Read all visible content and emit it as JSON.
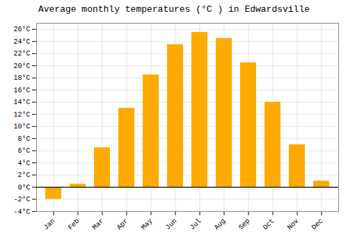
{
  "chart_data": {
    "type": "bar",
    "title": "Average monthly temperatures (°C ) in Edwardsville",
    "categories": [
      "Jan",
      "Feb",
      "Mar",
      "Apr",
      "May",
      "Jun",
      "Jul",
      "Aug",
      "Sep",
      "Oct",
      "Nov",
      "Dec"
    ],
    "values": [
      -2.0,
      0.5,
      6.5,
      13.0,
      18.5,
      23.5,
      25.5,
      24.5,
      20.5,
      14.0,
      7.0,
      1.0
    ],
    "color": "#FFAA00",
    "ylim": [
      -4,
      27
    ],
    "yticks": [
      {
        "value": -4,
        "label": "-4°C"
      },
      {
        "value": -2,
        "label": "-2°C"
      },
      {
        "value": 0,
        "label": "0°C"
      },
      {
        "value": 2,
        "label": "2°C"
      },
      {
        "value": 4,
        "label": "4°C"
      },
      {
        "value": 6,
        "label": "6°C"
      },
      {
        "value": 8,
        "label": "8°C"
      },
      {
        "value": 10,
        "label": "10°C"
      },
      {
        "value": 12,
        "label": "12°C"
      },
      {
        "value": 14,
        "label": "14°C"
      },
      {
        "value": 16,
        "label": "16°C"
      },
      {
        "value": 18,
        "label": "18°C"
      },
      {
        "value": 20,
        "label": "20°C"
      },
      {
        "value": 22,
        "label": "22°C"
      },
      {
        "value": 24,
        "label": "24°C"
      },
      {
        "value": 26,
        "label": "26°C"
      }
    ],
    "grid": true
  }
}
